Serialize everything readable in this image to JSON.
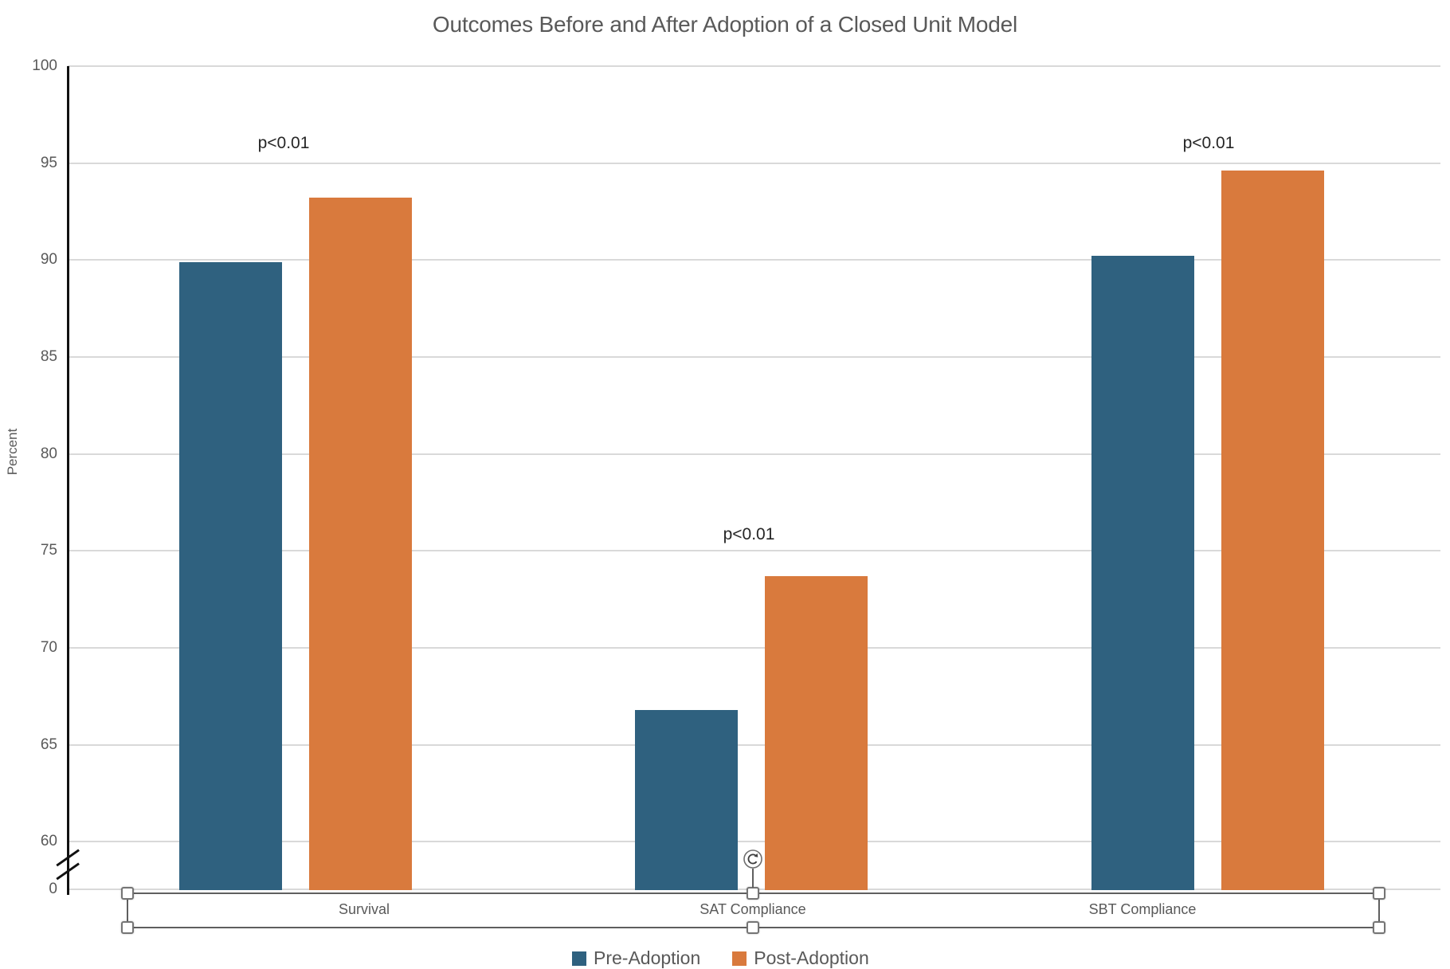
{
  "title": "Outcomes Before and After Adoption of a Closed Unit Model",
  "chart_data": {
    "type": "bar",
    "title": "Outcomes Before and After Adoption of a Closed Unit Model",
    "xlabel": "",
    "ylabel": "Percent",
    "categories": [
      "Survival",
      "SAT Compliance",
      "SBT Compliance"
    ],
    "series": [
      {
        "name": "Pre-Adoption",
        "color": "#2F617F",
        "values": [
          89.9,
          66.8,
          90.2
        ]
      },
      {
        "name": "Post-Adoption",
        "color": "#D97A3D",
        "values": [
          93.2,
          73.7,
          94.6
        ]
      }
    ],
    "annotations": [
      {
        "text": "p<0.01",
        "category": "Survival"
      },
      {
        "text": "p<0.01",
        "category": "SAT Compliance"
      },
      {
        "text": "p<0.01",
        "category": "SBT Compliance"
      }
    ],
    "y_ticks": [
      100,
      95,
      90,
      85,
      80,
      75,
      70,
      65,
      60,
      0
    ],
    "y_axis_break": true,
    "ylim": [
      0,
      100
    ],
    "grid": true,
    "legend_position": "bottom"
  },
  "legend": {
    "items": [
      {
        "label": "Pre-Adoption",
        "color": "#2F617F"
      },
      {
        "label": "Post-Adoption",
        "color": "#D97A3D"
      }
    ]
  },
  "selection_overlay": {
    "selected_element": "category-axis-labels",
    "handle_count": 6,
    "has_rotate_handle": true
  },
  "colors": {
    "pre": "#2F617F",
    "post": "#D97A3D",
    "gridline": "#D9D9D9",
    "axis": "#111111",
    "text": "#595959",
    "annotation": "#262626"
  }
}
